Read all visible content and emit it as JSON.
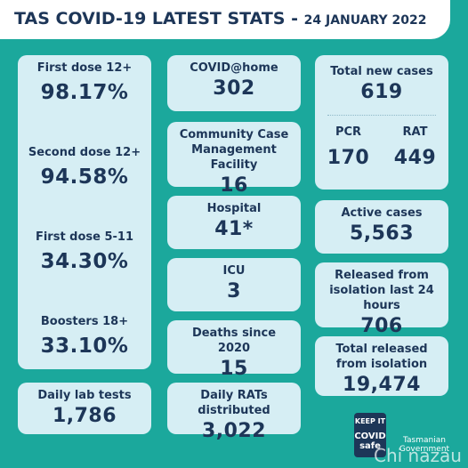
{
  "header": {
    "title": "TAS COVID-19 LATEST STATS",
    "separator": "-",
    "date": "24 JANUARY 2022"
  },
  "vaccination": [
    {
      "label": "First dose 12+",
      "value": "98.17%"
    },
    {
      "label": "Second dose 12+",
      "value": "94.58%"
    },
    {
      "label": "First dose 5-11",
      "value": "34.30%"
    },
    {
      "label": "Boosters 18+",
      "value": "33.10%"
    }
  ],
  "lab_tests": {
    "label": "Daily lab tests",
    "value": "1,786"
  },
  "middle": [
    {
      "label": "COVID@home",
      "value": "302"
    },
    {
      "label": "Community Case Management Facility",
      "value": "16"
    },
    {
      "label": "Hospital",
      "value": "41*"
    },
    {
      "label": "ICU",
      "value": "3"
    },
    {
      "label": "Deaths since 2020",
      "value": "15"
    },
    {
      "label": "Daily RATs distributed",
      "value": "3,022"
    }
  ],
  "new_cases": {
    "label": "Total new cases",
    "value": "619",
    "pcr": {
      "label": "PCR",
      "value": "170"
    },
    "rat": {
      "label": "RAT",
      "value": "449"
    }
  },
  "right": [
    {
      "label": "Active cases",
      "value": "5,563"
    },
    {
      "label": "Released from isolation last 24 hours",
      "value": "706"
    },
    {
      "label": "Total released from isolation",
      "value": "19,474"
    }
  ],
  "logos": {
    "covid_safe_top": "KEEP IT",
    "covid_safe_main": "COVID safe",
    "government": "Tasmanian Government"
  },
  "watermark": "Chi nazau"
}
